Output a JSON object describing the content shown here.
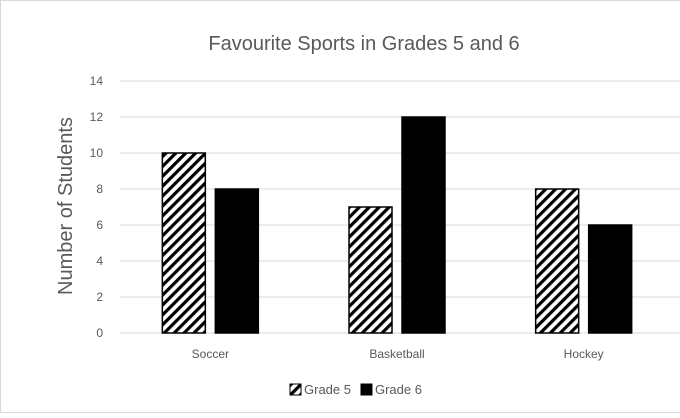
{
  "chart_data": {
    "type": "bar",
    "title": "Favourite Sports in Grades 5 and 6",
    "xlabel": "",
    "ylabel": "Number of Students",
    "categories": [
      "Soccer",
      "Basketball",
      "Hockey"
    ],
    "series": [
      {
        "name": "Grade 5",
        "values": [
          10,
          7,
          8
        ],
        "fill": "hatched"
      },
      {
        "name": "Grade 6",
        "values": [
          8,
          12,
          6
        ],
        "fill": "#000000"
      }
    ],
    "ylim": [
      0,
      14
    ],
    "yticks": [
      0,
      2,
      4,
      6,
      8,
      10,
      12,
      14
    ],
    "grid": true,
    "legend_position": "bottom"
  },
  "colors": {
    "axis_text": "#595959",
    "grid": "#d9d9d9",
    "bar_outline": "#000000",
    "background": "#ffffff"
  }
}
